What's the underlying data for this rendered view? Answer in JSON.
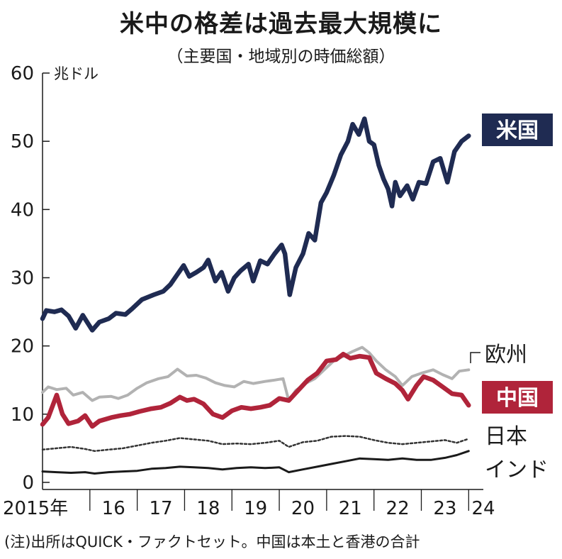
{
  "title": "米中の格差は過去最大規模に",
  "subtitle": "（主要国・地域別の時価総額）",
  "note": "(注)出所はQUICK・ファクトセット。中国は本土と香港の合計",
  "chart_data": {
    "type": "line",
    "ylabel": "兆ドル",
    "ylim": [
      0,
      60
    ],
    "yticks": [
      0,
      10,
      20,
      30,
      40,
      50,
      60
    ],
    "xlim": [
      2015.0,
      2024.1
    ],
    "xtick_labels": [
      {
        "x": 2015.0,
        "label": "2015年"
      },
      {
        "x": 2016.5,
        "label": "16"
      },
      {
        "x": 2017.5,
        "label": "17"
      },
      {
        "x": 2018.5,
        "label": "18"
      },
      {
        "x": 2019.5,
        "label": "19"
      },
      {
        "x": 2020.5,
        "label": "20"
      },
      {
        "x": 2021.5,
        "label": "21"
      },
      {
        "x": 2022.5,
        "label": "22"
      },
      {
        "x": 2023.5,
        "label": "23"
      },
      {
        "x": 2024.1,
        "label": "24"
      }
    ],
    "grid": false,
    "series": [
      {
        "name": "米国",
        "color": "#1f2b52",
        "style": "solid",
        "boxed": true,
        "points": [
          [
            2015.0,
            24.0
          ],
          [
            2015.08,
            25.2
          ],
          [
            2015.25,
            25.0
          ],
          [
            2015.4,
            25.3
          ],
          [
            2015.55,
            24.4
          ],
          [
            2015.7,
            22.6
          ],
          [
            2015.85,
            24.5
          ],
          [
            2016.05,
            22.3
          ],
          [
            2016.2,
            23.5
          ],
          [
            2016.4,
            24.0
          ],
          [
            2016.55,
            24.8
          ],
          [
            2016.75,
            24.6
          ],
          [
            2016.9,
            25.5
          ],
          [
            2017.1,
            26.8
          ],
          [
            2017.35,
            27.5
          ],
          [
            2017.55,
            28.0
          ],
          [
            2017.7,
            29.0
          ],
          [
            2017.85,
            30.5
          ],
          [
            2017.98,
            31.8
          ],
          [
            2018.1,
            30.2
          ],
          [
            2018.25,
            30.8
          ],
          [
            2018.4,
            31.5
          ],
          [
            2018.5,
            32.6
          ],
          [
            2018.65,
            29.5
          ],
          [
            2018.78,
            30.8
          ],
          [
            2018.92,
            28.0
          ],
          [
            2019.05,
            30.0
          ],
          [
            2019.18,
            31.0
          ],
          [
            2019.35,
            32.0
          ],
          [
            2019.45,
            29.5
          ],
          [
            2019.6,
            32.5
          ],
          [
            2019.75,
            32.0
          ],
          [
            2019.9,
            33.5
          ],
          [
            2020.05,
            34.8
          ],
          [
            2020.12,
            33.5
          ],
          [
            2020.22,
            27.5
          ],
          [
            2020.35,
            31.5
          ],
          [
            2020.5,
            33.5
          ],
          [
            2020.62,
            36.5
          ],
          [
            2020.75,
            35.5
          ],
          [
            2020.88,
            41.0
          ],
          [
            2021.0,
            42.5
          ],
          [
            2021.15,
            45.0
          ],
          [
            2021.3,
            48.0
          ],
          [
            2021.45,
            50.0
          ],
          [
            2021.55,
            52.5
          ],
          [
            2021.68,
            51.0
          ],
          [
            2021.8,
            53.3
          ],
          [
            2021.9,
            50.0
          ],
          [
            2022.0,
            49.5
          ],
          [
            2022.1,
            46.5
          ],
          [
            2022.2,
            44.5
          ],
          [
            2022.3,
            43.0
          ],
          [
            2022.38,
            40.5
          ],
          [
            2022.45,
            44.0
          ],
          [
            2022.55,
            42.0
          ],
          [
            2022.7,
            43.5
          ],
          [
            2022.82,
            41.5
          ],
          [
            2022.95,
            44.0
          ],
          [
            2023.1,
            43.8
          ],
          [
            2023.25,
            47.0
          ],
          [
            2023.4,
            47.5
          ],
          [
            2023.55,
            44.0
          ],
          [
            2023.7,
            48.5
          ],
          [
            2023.85,
            50.0
          ],
          [
            2024.0,
            50.8
          ]
        ]
      },
      {
        "name": "欧州",
        "color": "#b2b2b2",
        "style": "solid",
        "boxed": false,
        "points": [
          [
            2015.0,
            13.2
          ],
          [
            2015.12,
            14.0
          ],
          [
            2015.3,
            13.6
          ],
          [
            2015.5,
            13.8
          ],
          [
            2015.65,
            12.8
          ],
          [
            2015.85,
            13.2
          ],
          [
            2016.05,
            12.0
          ],
          [
            2016.2,
            12.5
          ],
          [
            2016.45,
            12.6
          ],
          [
            2016.6,
            12.3
          ],
          [
            2016.8,
            12.8
          ],
          [
            2017.0,
            13.8
          ],
          [
            2017.2,
            14.6
          ],
          [
            2017.45,
            15.2
          ],
          [
            2017.65,
            15.5
          ],
          [
            2017.85,
            16.6
          ],
          [
            2018.05,
            15.6
          ],
          [
            2018.25,
            15.7
          ],
          [
            2018.45,
            15.3
          ],
          [
            2018.65,
            14.6
          ],
          [
            2018.85,
            14.2
          ],
          [
            2019.05,
            14.0
          ],
          [
            2019.25,
            14.8
          ],
          [
            2019.45,
            14.5
          ],
          [
            2019.7,
            14.8
          ],
          [
            2019.9,
            15.0
          ],
          [
            2020.08,
            15.2
          ],
          [
            2020.2,
            12.0
          ],
          [
            2020.35,
            13.5
          ],
          [
            2020.55,
            14.5
          ],
          [
            2020.75,
            15.2
          ],
          [
            2020.95,
            16.5
          ],
          [
            2021.15,
            17.8
          ],
          [
            2021.35,
            18.5
          ],
          [
            2021.55,
            19.2
          ],
          [
            2021.75,
            19.8
          ],
          [
            2021.9,
            19.0
          ],
          [
            2022.05,
            17.8
          ],
          [
            2022.25,
            16.5
          ],
          [
            2022.45,
            15.5
          ],
          [
            2022.6,
            14.2
          ],
          [
            2022.8,
            15.5
          ],
          [
            2023.0,
            16.0
          ],
          [
            2023.25,
            16.5
          ],
          [
            2023.45,
            15.8
          ],
          [
            2023.65,
            15.2
          ],
          [
            2023.8,
            16.3
          ],
          [
            2024.0,
            16.5
          ]
        ]
      },
      {
        "name": "中国",
        "color": "#b0243a",
        "style": "solid",
        "boxed": true,
        "points": [
          [
            2015.0,
            8.5
          ],
          [
            2015.12,
            9.5
          ],
          [
            2015.3,
            12.8
          ],
          [
            2015.42,
            10.0
          ],
          [
            2015.55,
            8.6
          ],
          [
            2015.75,
            9.0
          ],
          [
            2015.9,
            9.8
          ],
          [
            2016.05,
            8.2
          ],
          [
            2016.2,
            9.0
          ],
          [
            2016.45,
            9.5
          ],
          [
            2016.65,
            9.8
          ],
          [
            2016.85,
            10.0
          ],
          [
            2017.05,
            10.4
          ],
          [
            2017.3,
            10.8
          ],
          [
            2017.5,
            11.0
          ],
          [
            2017.7,
            11.6
          ],
          [
            2017.9,
            12.5
          ],
          [
            2018.05,
            12.0
          ],
          [
            2018.2,
            12.2
          ],
          [
            2018.4,
            11.5
          ],
          [
            2018.6,
            10.0
          ],
          [
            2018.8,
            9.5
          ],
          [
            2019.0,
            10.5
          ],
          [
            2019.2,
            11.0
          ],
          [
            2019.4,
            10.8
          ],
          [
            2019.6,
            11.0
          ],
          [
            2019.8,
            11.3
          ],
          [
            2020.0,
            12.3
          ],
          [
            2020.2,
            12.0
          ],
          [
            2020.4,
            13.5
          ],
          [
            2020.6,
            15.0
          ],
          [
            2020.8,
            16.0
          ],
          [
            2021.0,
            17.8
          ],
          [
            2021.2,
            18.0
          ],
          [
            2021.35,
            18.8
          ],
          [
            2021.5,
            18.2
          ],
          [
            2021.7,
            18.5
          ],
          [
            2021.9,
            18.3
          ],
          [
            2022.05,
            16.0
          ],
          [
            2022.25,
            15.2
          ],
          [
            2022.45,
            14.5
          ],
          [
            2022.6,
            13.5
          ],
          [
            2022.72,
            12.2
          ],
          [
            2022.9,
            14.2
          ],
          [
            2023.05,
            15.5
          ],
          [
            2023.25,
            15.0
          ],
          [
            2023.45,
            14.0
          ],
          [
            2023.65,
            13.0
          ],
          [
            2023.85,
            12.8
          ],
          [
            2024.0,
            11.3
          ]
        ]
      },
      {
        "name": "日本",
        "color": "#333333",
        "style": "dotted",
        "boxed": false,
        "points": [
          [
            2015.0,
            4.8
          ],
          [
            2015.3,
            5.0
          ],
          [
            2015.6,
            5.2
          ],
          [
            2015.9,
            4.9
          ],
          [
            2016.1,
            4.6
          ],
          [
            2016.4,
            4.8
          ],
          [
            2016.7,
            5.0
          ],
          [
            2017.0,
            5.4
          ],
          [
            2017.3,
            5.8
          ],
          [
            2017.6,
            6.1
          ],
          [
            2017.9,
            6.5
          ],
          [
            2018.2,
            6.3
          ],
          [
            2018.5,
            6.1
          ],
          [
            2018.8,
            5.6
          ],
          [
            2019.1,
            5.7
          ],
          [
            2019.4,
            5.6
          ],
          [
            2019.7,
            5.8
          ],
          [
            2020.0,
            6.1
          ],
          [
            2020.2,
            5.2
          ],
          [
            2020.5,
            5.9
          ],
          [
            2020.8,
            6.1
          ],
          [
            2021.1,
            6.7
          ],
          [
            2021.4,
            6.8
          ],
          [
            2021.7,
            6.7
          ],
          [
            2022.0,
            6.2
          ],
          [
            2022.3,
            5.8
          ],
          [
            2022.6,
            5.6
          ],
          [
            2022.9,
            5.8
          ],
          [
            2023.2,
            6.0
          ],
          [
            2023.5,
            6.2
          ],
          [
            2023.75,
            5.8
          ],
          [
            2024.0,
            6.4
          ]
        ]
      },
      {
        "name": "インド",
        "color": "#1a1a1a",
        "style": "solid",
        "boxed": false,
        "points": [
          [
            2015.0,
            1.6
          ],
          [
            2015.3,
            1.5
          ],
          [
            2015.6,
            1.4
          ],
          [
            2015.9,
            1.5
          ],
          [
            2016.1,
            1.3
          ],
          [
            2016.4,
            1.5
          ],
          [
            2016.7,
            1.6
          ],
          [
            2017.0,
            1.7
          ],
          [
            2017.3,
            2.0
          ],
          [
            2017.6,
            2.1
          ],
          [
            2017.9,
            2.3
          ],
          [
            2018.2,
            2.2
          ],
          [
            2018.5,
            2.1
          ],
          [
            2018.8,
            1.9
          ],
          [
            2019.1,
            2.1
          ],
          [
            2019.4,
            2.2
          ],
          [
            2019.7,
            2.1
          ],
          [
            2020.0,
            2.2
          ],
          [
            2020.2,
            1.5
          ],
          [
            2020.5,
            1.9
          ],
          [
            2020.8,
            2.3
          ],
          [
            2021.1,
            2.7
          ],
          [
            2021.4,
            3.1
          ],
          [
            2021.7,
            3.5
          ],
          [
            2022.0,
            3.4
          ],
          [
            2022.3,
            3.3
          ],
          [
            2022.6,
            3.5
          ],
          [
            2022.9,
            3.3
          ],
          [
            2023.2,
            3.3
          ],
          [
            2023.5,
            3.6
          ],
          [
            2023.75,
            4.0
          ],
          [
            2024.0,
            4.6
          ]
        ]
      }
    ]
  }
}
